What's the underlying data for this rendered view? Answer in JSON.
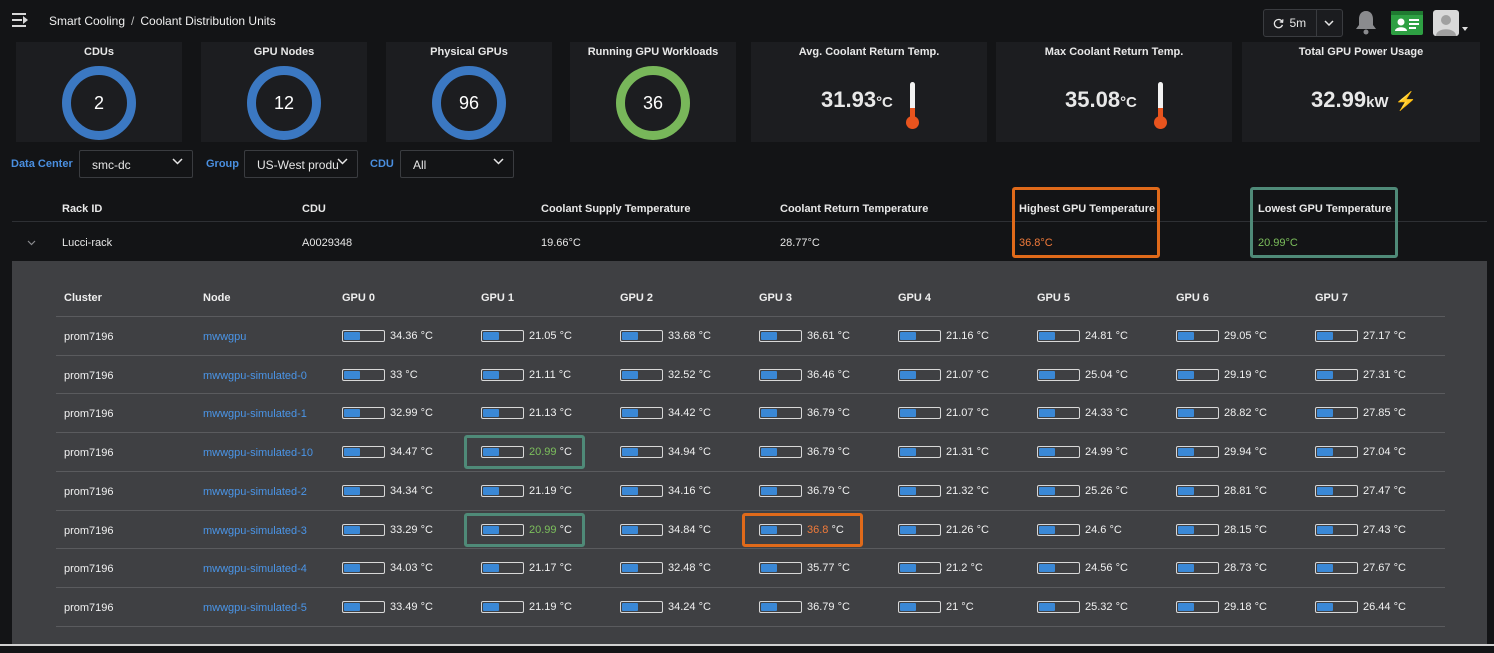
{
  "header": {
    "breadcrumb": [
      "Smart Cooling",
      "Coolant Distribution Units"
    ],
    "breadcrumb_separator": "/",
    "refresh_interval": "5m",
    "icons": [
      "menu-icon",
      "refresh-icon",
      "chevron-down-icon",
      "bell-icon",
      "id-card-icon",
      "avatar-icon"
    ]
  },
  "stats": {
    "cdus": {
      "label": "CDUs",
      "value": "2"
    },
    "gpu_nodes": {
      "label": "GPU Nodes",
      "value": "12"
    },
    "physical_gpus": {
      "label": "Physical GPUs",
      "value": "96"
    },
    "running_workloads": {
      "label": "Running GPU Workloads",
      "value": "36"
    },
    "avg_return": {
      "label": "Avg. Coolant Return Temp.",
      "value": "31.93",
      "unit": "°C"
    },
    "max_return": {
      "label": "Max Coolant Return Temp.",
      "value": "35.08",
      "unit": "°C"
    },
    "total_power": {
      "label": "Total GPU Power Usage",
      "value": "32.99",
      "unit": "kW"
    }
  },
  "filters": {
    "data_center": {
      "label": "Data Center",
      "value": "smc-dc"
    },
    "group": {
      "label": "Group",
      "value": "US-West produ"
    },
    "cdu": {
      "label": "CDU",
      "value": "All"
    }
  },
  "rack_table": {
    "headers": {
      "rack_id": "Rack ID",
      "cdu": "CDU",
      "supply": "Coolant Supply Temperature",
      "return": "Coolant Return Temperature",
      "highest": "Highest GPU Temperature",
      "lowest": "Lowest GPU Temperature"
    },
    "row": {
      "rack_id": "Lucci-rack",
      "cdu": "A0029348",
      "supply": "19.66°C",
      "return": "28.77°C",
      "highest": "36.8°C",
      "lowest": "20.99°C"
    }
  },
  "gpu_table": {
    "headers": [
      "Cluster",
      "Node",
      "GPU 0",
      "GPU 1",
      "GPU 2",
      "GPU 3",
      "GPU 4",
      "GPU 5",
      "GPU 6",
      "GPU 7"
    ],
    "unit": "°C",
    "rows": [
      {
        "cluster": "prom7196",
        "node": "mwwgpu",
        "temps": [
          "34.36",
          "21.05",
          "33.68",
          "36.61",
          "21.16",
          "24.81",
          "29.05",
          "27.17"
        ]
      },
      {
        "cluster": "prom7196",
        "node": "mwwgpu-simulated-0",
        "temps": [
          "33",
          "21.11",
          "32.52",
          "36.46",
          "21.07",
          "25.04",
          "29.19",
          "27.31"
        ]
      },
      {
        "cluster": "prom7196",
        "node": "mwwgpu-simulated-1",
        "temps": [
          "32.99",
          "21.13",
          "34.42",
          "36.79",
          "21.07",
          "24.33",
          "28.82",
          "27.85"
        ]
      },
      {
        "cluster": "prom7196",
        "node": "mwwgpu-simulated-10",
        "temps": [
          "34.47",
          "20.99",
          "34.94",
          "36.79",
          "21.31",
          "24.99",
          "29.94",
          "27.04"
        ]
      },
      {
        "cluster": "prom7196",
        "node": "mwwgpu-simulated-2",
        "temps": [
          "34.34",
          "21.19",
          "34.16",
          "36.79",
          "21.32",
          "25.26",
          "28.81",
          "27.47"
        ]
      },
      {
        "cluster": "prom7196",
        "node": "mwwgpu-simulated-3",
        "temps": [
          "33.29",
          "20.99",
          "34.84",
          "36.8",
          "21.26",
          "24.6",
          "28.15",
          "27.43"
        ]
      },
      {
        "cluster": "prom7196",
        "node": "mwwgpu-simulated-4",
        "temps": [
          "34.03",
          "21.17",
          "32.48",
          "35.77",
          "21.2",
          "24.56",
          "28.73",
          "27.67"
        ]
      },
      {
        "cluster": "prom7196",
        "node": "mwwgpu-simulated-5",
        "temps": [
          "33.49",
          "21.19",
          "34.24",
          "36.79",
          "21",
          "25.32",
          "29.18",
          "26.44"
        ]
      }
    ],
    "lowest_cells": [
      [
        3,
        1
      ],
      [
        5,
        1
      ]
    ],
    "highest_cells": [
      [
        5,
        3
      ]
    ],
    "bar_fraction": 0.4
  },
  "colors": {
    "accent_blue": "#3b78c2",
    "link_blue": "#4a95e8",
    "highlight_orange": "#e06a1a",
    "highlight_green": "#4f8a78",
    "workload_green": "#78b75a"
  }
}
